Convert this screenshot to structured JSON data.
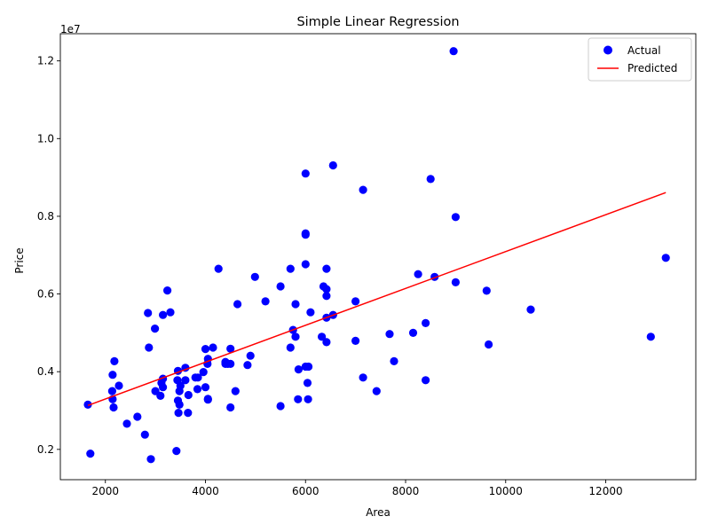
{
  "chart_data": {
    "type": "scatter",
    "title": "Simple Linear Regression",
    "xlabel": "Area",
    "ylabel": "Price",
    "y_scale_label": "1e7",
    "xlim": [
      1100,
      13800
    ],
    "ylim": [
      1220000,
      12700000
    ],
    "x_ticks": [
      2000,
      4000,
      6000,
      8000,
      10000,
      12000
    ],
    "x_tick_labels": [
      "2000",
      "4000",
      "6000",
      "8000",
      "10000",
      "12000"
    ],
    "y_ticks": [
      2000000,
      4000000,
      6000000,
      8000000,
      10000000,
      12000000
    ],
    "y_tick_labels": [
      "0.2",
      "0.4",
      "0.6",
      "0.8",
      "1.0",
      "1.2"
    ],
    "legend": {
      "position": "top-right",
      "entries": [
        "Actual",
        "Predicted"
      ]
    },
    "series": [
      {
        "name": "Actual",
        "kind": "scatter",
        "color": "#0000ff",
        "points": [
          [
            8960,
            12250000
          ],
          [
            6550,
            9310000
          ],
          [
            6000,
            9100000
          ],
          [
            8500,
            8960000
          ],
          [
            7150,
            8680000
          ],
          [
            9000,
            7980000
          ],
          [
            6000,
            7560000
          ],
          [
            6000,
            7525000
          ],
          [
            13200,
            6930000
          ],
          [
            6000,
            6765000
          ],
          [
            4260,
            6650000
          ],
          [
            5700,
            6650000
          ],
          [
            6420,
            6650000
          ],
          [
            8250,
            6510000
          ],
          [
            8580,
            6440000
          ],
          [
            4990,
            6440000
          ],
          [
            9000,
            6300000
          ],
          [
            5500,
            6195000
          ],
          [
            6360,
            6195000
          ],
          [
            6420,
            6125000
          ],
          [
            3240,
            6090000
          ],
          [
            9620,
            6083000
          ],
          [
            6420,
            5950000
          ],
          [
            5200,
            5810000
          ],
          [
            7000,
            5810000
          ],
          [
            4640,
            5740000
          ],
          [
            5800,
            5740000
          ],
          [
            10500,
            5600000
          ],
          [
            6100,
            5530000
          ],
          [
            2850,
            5510000
          ],
          [
            3300,
            5530000
          ],
          [
            3150,
            5460000
          ],
          [
            6550,
            5460000
          ],
          [
            6420,
            5390000
          ],
          [
            8400,
            5250000
          ],
          [
            2990,
            5110000
          ],
          [
            5750,
            5075000
          ],
          [
            7680,
            4970000
          ],
          [
            8150,
            5000000
          ],
          [
            5800,
            4900000
          ],
          [
            6325,
            4900000
          ],
          [
            12900,
            4900000
          ],
          [
            7000,
            4795000
          ],
          [
            6420,
            4760000
          ],
          [
            9660,
            4700000
          ],
          [
            2870,
            4620000
          ],
          [
            5700,
            4620000
          ],
          [
            4000,
            4585000
          ],
          [
            4500,
            4590000
          ],
          [
            4150,
            4620000
          ],
          [
            4900,
            4410000
          ],
          [
            4050,
            4330000
          ],
          [
            4400,
            4250000
          ],
          [
            4450,
            4200000
          ],
          [
            4500,
            4200000
          ],
          [
            4400,
            4200000
          ],
          [
            7770,
            4270000
          ],
          [
            4840,
            4170000
          ],
          [
            6000,
            4130000
          ],
          [
            6060,
            4130000
          ],
          [
            4040,
            4200000
          ],
          [
            5860,
            4060000
          ],
          [
            2180,
            4270000
          ],
          [
            3600,
            4100000
          ],
          [
            3450,
            4020000
          ],
          [
            3960,
            3990000
          ],
          [
            2145,
            3920000
          ],
          [
            7150,
            3850000
          ],
          [
            3800,
            3850000
          ],
          [
            3850,
            3850000
          ],
          [
            3440,
            3780000
          ],
          [
            8400,
            3780000
          ],
          [
            3150,
            3820000
          ],
          [
            3600,
            3780000
          ],
          [
            3120,
            3710000
          ],
          [
            6040,
            3710000
          ],
          [
            2270,
            3640000
          ],
          [
            3150,
            3600000
          ],
          [
            3500,
            3640000
          ],
          [
            4000,
            3600000
          ],
          [
            3840,
            3550000
          ],
          [
            3000,
            3500000
          ],
          [
            4600,
            3500000
          ],
          [
            7420,
            3500000
          ],
          [
            2135,
            3500000
          ],
          [
            3480,
            3500000
          ],
          [
            3660,
            3400000
          ],
          [
            3100,
            3380000
          ],
          [
            4050,
            3300000
          ],
          [
            4050,
            3280000
          ],
          [
            2145,
            3290000
          ],
          [
            5850,
            3290000
          ],
          [
            6050,
            3290000
          ],
          [
            3450,
            3255000
          ],
          [
            3480,
            3150000
          ],
          [
            1650,
            3150000
          ],
          [
            5500,
            3115000
          ],
          [
            2165,
            3080000
          ],
          [
            4500,
            3080000
          ],
          [
            3460,
            2940000
          ],
          [
            3650,
            2940000
          ],
          [
            2640,
            2840000
          ],
          [
            2430,
            2660000
          ],
          [
            2790,
            2380000
          ],
          [
            3420,
            1960000
          ],
          [
            1700,
            1890000
          ],
          [
            2910,
            1750000
          ]
        ]
      },
      {
        "name": "Predicted",
        "kind": "line",
        "color": "#ff0000",
        "points": [
          [
            1650,
            3130000
          ],
          [
            13200,
            8610000
          ]
        ]
      }
    ]
  }
}
